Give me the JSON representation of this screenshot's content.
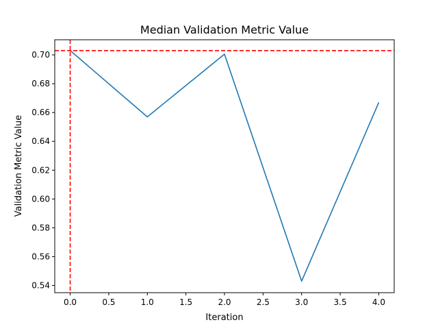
{
  "chart_data": {
    "type": "line",
    "title": "Median Validation Metric Value",
    "xlabel": "Iteration",
    "ylabel": "Validation Metric Value",
    "xlim": [
      -0.2,
      4.2
    ],
    "ylim": [
      0.535,
      0.7105
    ],
    "xticks": [
      0.0,
      0.5,
      1.0,
      1.5,
      2.0,
      2.5,
      3.0,
      3.5,
      4.0
    ],
    "xtick_labels": [
      "0.0",
      "0.5",
      "1.0",
      "1.5",
      "2.0",
      "2.5",
      "3.0",
      "3.5",
      "4.0"
    ],
    "yticks": [
      0.54,
      0.56,
      0.58,
      0.6,
      0.62,
      0.64,
      0.66,
      0.68,
      0.7
    ],
    "ytick_labels": [
      "0.54",
      "0.56",
      "0.58",
      "0.60",
      "0.62",
      "0.64",
      "0.66",
      "0.68",
      "0.70"
    ],
    "grid": false,
    "series": [
      {
        "x": [
          0,
          1,
          2,
          3,
          4
        ],
        "values": [
          0.703,
          0.657,
          0.7005,
          0.543,
          0.667
        ],
        "color": "#1f77b4"
      }
    ],
    "reference_lines": [
      {
        "orientation": "horizontal",
        "value": 0.703,
        "color": "#ff0000",
        "style": "dashed"
      },
      {
        "orientation": "vertical",
        "value": 0,
        "color": "#ff0000",
        "style": "dashed"
      }
    ]
  }
}
